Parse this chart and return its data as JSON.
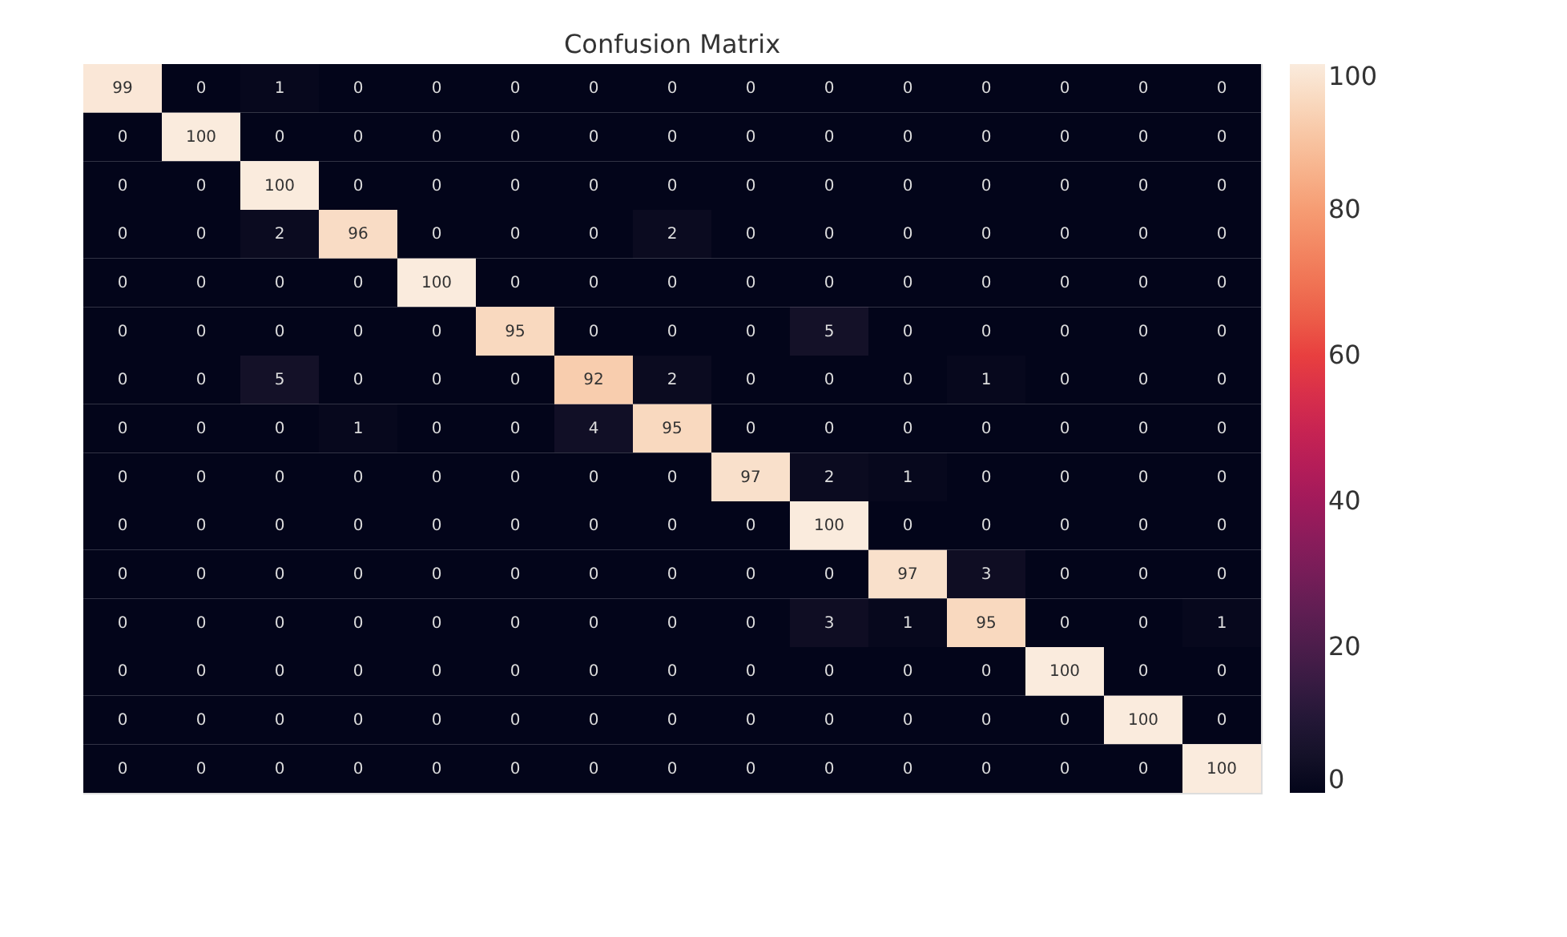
{
  "chart_data": {
    "type": "heatmap",
    "title": "Confusion Matrix",
    "categories": [
      null,
      null,
      null,
      null,
      null,
      null,
      null,
      null,
      null,
      null,
      null,
      null,
      null,
      null,
      null
    ],
    "y_categories": [
      null,
      null,
      null,
      null,
      null,
      null,
      null,
      null,
      null,
      null,
      null,
      null,
      null,
      null,
      null
    ],
    "cells": [
      [
        99,
        0,
        1,
        0,
        0,
        0,
        0,
        0,
        0,
        0,
        0,
        0,
        0,
        0,
        0
      ],
      [
        0,
        100,
        0,
        0,
        0,
        0,
        0,
        0,
        0,
        0,
        0,
        0,
        0,
        0,
        0
      ],
      [
        0,
        0,
        100,
        0,
        0,
        0,
        0,
        0,
        0,
        0,
        0,
        0,
        0,
        0,
        0
      ],
      [
        0,
        0,
        2,
        96,
        0,
        0,
        0,
        2,
        0,
        0,
        0,
        0,
        0,
        0,
        0
      ],
      [
        0,
        0,
        0,
        0,
        100,
        0,
        0,
        0,
        0,
        0,
        0,
        0,
        0,
        0,
        0
      ],
      [
        0,
        0,
        0,
        0,
        0,
        95,
        0,
        0,
        0,
        5,
        0,
        0,
        0,
        0,
        0
      ],
      [
        0,
        0,
        5,
        0,
        0,
        0,
        92,
        2,
        0,
        0,
        0,
        1,
        0,
        0,
        0
      ],
      [
        0,
        0,
        0,
        1,
        0,
        0,
        4,
        95,
        0,
        0,
        0,
        0,
        0,
        0,
        0
      ],
      [
        0,
        0,
        0,
        0,
        0,
        0,
        0,
        0,
        97,
        2,
        1,
        0,
        0,
        0,
        0
      ],
      [
        0,
        0,
        0,
        0,
        0,
        0,
        0,
        0,
        0,
        100,
        0,
        0,
        0,
        0,
        0
      ],
      [
        0,
        0,
        0,
        0,
        0,
        0,
        0,
        0,
        0,
        0,
        97,
        3,
        0,
        0,
        0
      ],
      [
        0,
        0,
        0,
        0,
        0,
        0,
        0,
        0,
        0,
        3,
        1,
        95,
        0,
        0,
        1
      ],
      [
        0,
        0,
        0,
        0,
        0,
        0,
        0,
        0,
        0,
        0,
        0,
        0,
        100,
        0,
        0
      ],
      [
        0,
        0,
        0,
        0,
        0,
        0,
        0,
        0,
        0,
        0,
        0,
        0,
        0,
        100,
        0
      ],
      [
        0,
        0,
        0,
        0,
        0,
        0,
        0,
        0,
        0,
        0,
        0,
        0,
        0,
        0,
        100
      ]
    ],
    "clim": [
      0,
      100
    ],
    "cticks": [
      0,
      20,
      40,
      60,
      80,
      100
    ],
    "data_labels": true,
    "tick_labels": false
  }
}
